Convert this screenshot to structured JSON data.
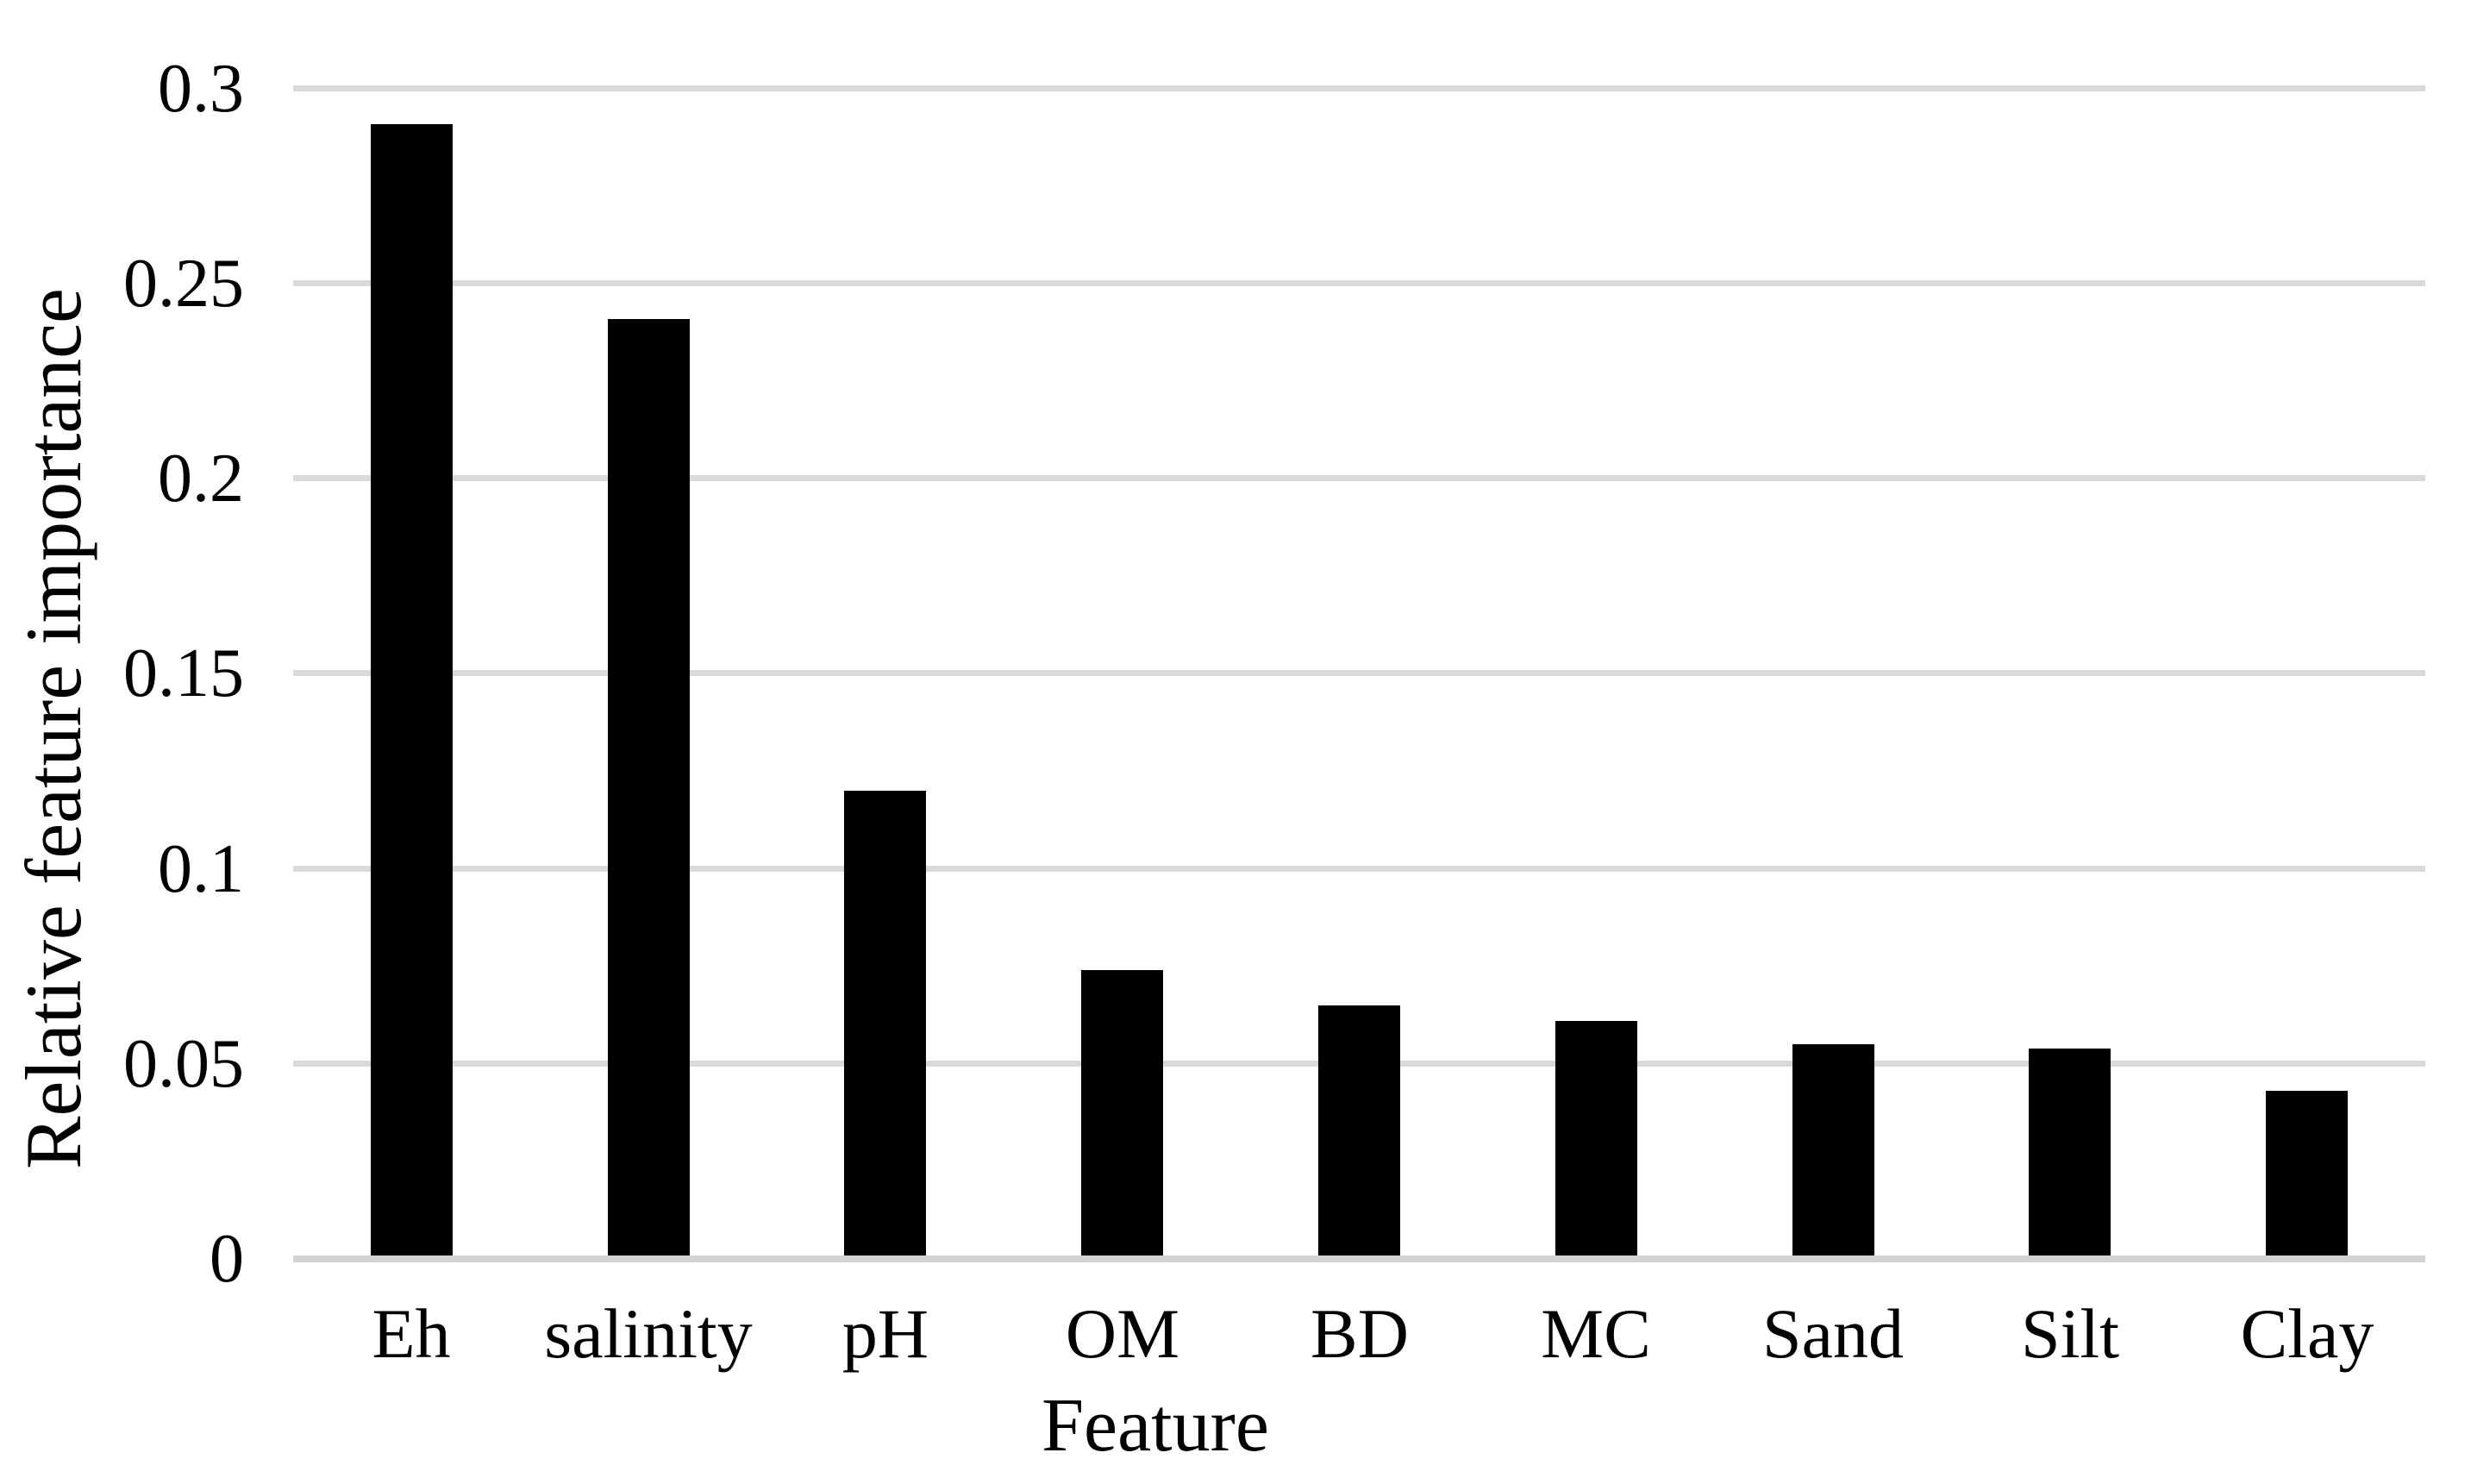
{
  "chart_data": {
    "type": "bar",
    "title": "",
    "xlabel": "Feature",
    "ylabel": "Relative feature importance",
    "categories": [
      "Eh",
      "salinity",
      "pH",
      "OM",
      "BD",
      "MC",
      "Sand",
      "Silt",
      "Clay"
    ],
    "values": [
      0.291,
      0.241,
      0.12,
      0.074,
      0.065,
      0.061,
      0.055,
      0.054,
      0.043
    ],
    "ylim": [
      0,
      0.3
    ],
    "y_ticks": [
      {
        "value": 0,
        "label": "0"
      },
      {
        "value": 0.05,
        "label": "0.05"
      },
      {
        "value": 0.1,
        "label": "0.1"
      },
      {
        "value": 0.15,
        "label": "0.15"
      },
      {
        "value": 0.2,
        "label": "0.2"
      },
      {
        "value": 0.25,
        "label": "0.25"
      },
      {
        "value": 0.3,
        "label": "0.3"
      }
    ],
    "grid": "horizontal-only",
    "legend": "none",
    "bar_color": "#000000",
    "gridline_color": "#d9d9d9",
    "axis_line_color": "#d4d4d4",
    "background_color": "#ffffff",
    "text_color": "#000000"
  }
}
